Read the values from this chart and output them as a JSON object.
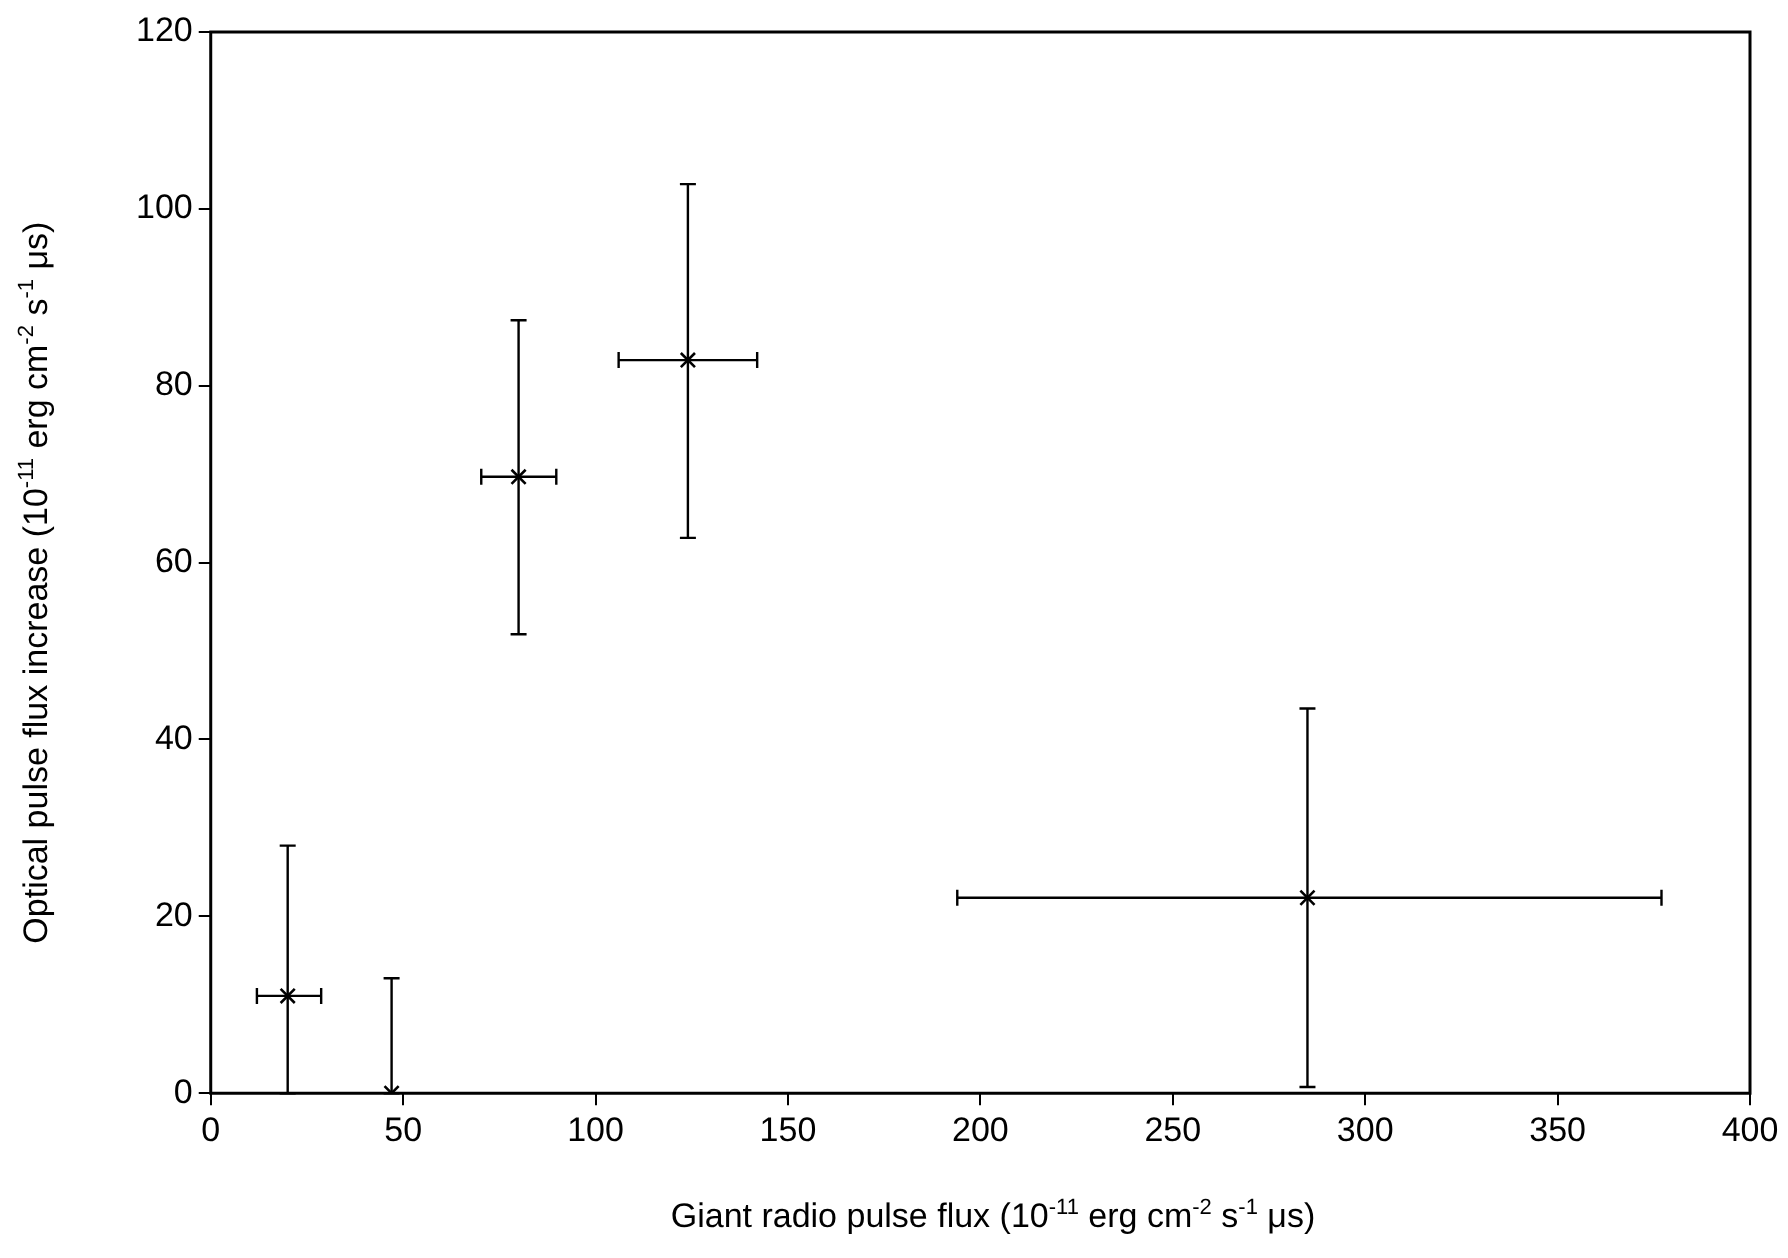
{
  "chart_data": {
    "type": "scatter",
    "xlabel": "Giant radio pulse flux (10$^{-11}$  erg cm$^{-2}$ s$^{-1}$ μs)",
    "ylabel": "Optical pulse flux increase (10$^{-11}$  erg cm$^{-2}$ s$^{-1}$ μs)",
    "xlim": [
      0,
      400
    ],
    "xticks": [
      0,
      50,
      100,
      150,
      200,
      250,
      300,
      350,
      400
    ],
    "ylim": [
      0,
      120
    ],
    "yticks": [
      0,
      20,
      40,
      60,
      80,
      100,
      120
    ],
    "grid": false,
    "legend": false,
    "marker": "cross",
    "series": [
      {
        "color": "#000000",
        "x": [
          20,
          47,
          80,
          124,
          285
        ],
        "values": [
          11,
          0,
          69.7,
          82.9,
          22.1
        ],
        "errors": [
          [
            0,
            28
          ],
          [
            0,
            13
          ],
          [
            51.9,
            87.4
          ],
          [
            62.8,
            102.8
          ],
          [
            0.7,
            43.5
          ]
        ],
        "xerrors": [
          [
            12,
            28.7
          ],
          null,
          [
            70.3,
            89.8
          ],
          [
            106,
            142
          ],
          [
            194,
            377
          ]
        ]
      }
    ]
  }
}
